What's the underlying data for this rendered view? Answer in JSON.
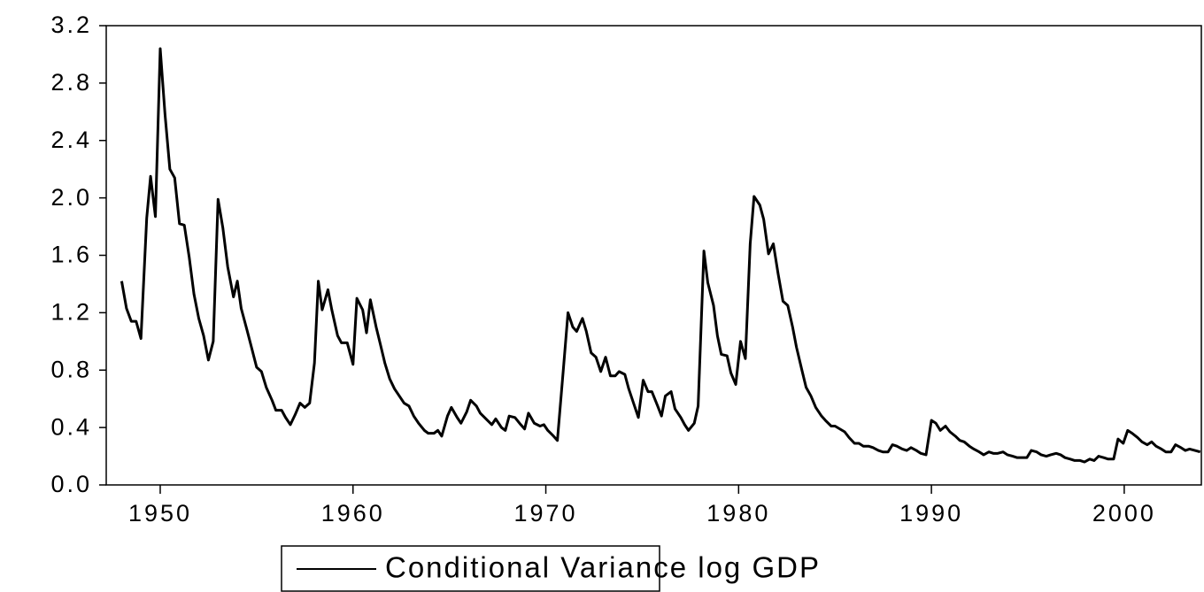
{
  "chart_data": {
    "type": "line",
    "xlim": [
      1947.2,
      2004.0
    ],
    "xticks": [
      1950,
      1960,
      1970,
      1980,
      1990,
      2000
    ],
    "ylim": [
      0,
      3.2
    ],
    "yticks": [
      {
        "value": 0,
        "label": "0.0"
      },
      0.4,
      0.8,
      1.2,
      1.6,
      {
        "value": 2,
        "label": "2.0"
      },
      2.4,
      2.8,
      3.2
    ],
    "grid": false,
    "legend": "bottom",
    "x": [
      1948.0,
      1948.25,
      1948.5,
      1948.75,
      1949.0,
      1949.3,
      1949.5,
      1949.75,
      1950.0,
      1950.25,
      1950.5,
      1950.75,
      1951.0,
      1951.25,
      1951.5,
      1951.75,
      1952.0,
      1952.25,
      1952.5,
      1952.75,
      1953.0,
      1953.25,
      1953.5,
      1953.8,
      1954.0,
      1954.2,
      1954.5,
      1954.75,
      1955.0,
      1955.25,
      1955.5,
      1955.8,
      1956.0,
      1956.3,
      1956.5,
      1956.75,
      1957.0,
      1957.25,
      1957.5,
      1957.75,
      1958.0,
      1958.2,
      1958.4,
      1958.7,
      1958.9,
      1959.2,
      1959.4,
      1959.7,
      1960.0,
      1960.2,
      1960.5,
      1960.7,
      1960.9,
      1961.2,
      1961.4,
      1961.65,
      1961.9,
      1962.15,
      1962.4,
      1962.65,
      1962.9,
      1963.15,
      1963.4,
      1963.7,
      1963.9,
      1964.2,
      1964.4,
      1964.6,
      1964.9,
      1965.1,
      1965.4,
      1965.6,
      1965.9,
      1966.1,
      1966.4,
      1966.6,
      1966.9,
      1967.2,
      1967.4,
      1967.7,
      1967.9,
      1968.1,
      1968.4,
      1968.7,
      1968.9,
      1969.1,
      1969.4,
      1969.7,
      1969.9,
      1970.1,
      1970.4,
      1970.6,
      1970.9,
      1971.15,
      1971.4,
      1971.6,
      1971.9,
      1972.1,
      1972.35,
      1972.6,
      1972.85,
      1973.1,
      1973.35,
      1973.6,
      1973.8,
      1974.1,
      1974.3,
      1974.55,
      1974.8,
      1975.05,
      1975.3,
      1975.5,
      1975.8,
      1976.0,
      1976.2,
      1976.5,
      1976.7,
      1977.0,
      1977.2,
      1977.4,
      1977.7,
      1977.9,
      1978.2,
      1978.4,
      1978.7,
      1978.9,
      1979.1,
      1979.4,
      1979.6,
      1979.85,
      1980.1,
      1980.35,
      1980.6,
      1980.8,
      1981.1,
      1981.3,
      1981.55,
      1981.8,
      1982.05,
      1982.3,
      1982.55,
      1982.8,
      1983.0,
      1983.3,
      1983.5,
      1983.75,
      1984.0,
      1984.3,
      1984.5,
      1984.8,
      1985.0,
      1985.5,
      1985.73,
      1986.01,
      1986.24,
      1986.47,
      1986.74,
      1986.97,
      1987.25,
      1987.48,
      1987.75,
      1987.98,
      1988.21,
      1988.49,
      1988.72,
      1988.94,
      1989.22,
      1989.45,
      1989.72,
      1990.0,
      1990.23,
      1990.46,
      1990.73,
      1990.96,
      1991.24,
      1991.47,
      1991.7,
      1991.97,
      1992.2,
      1992.48,
      1992.71,
      1992.98,
      1993.21,
      1993.44,
      1993.72,
      1993.94,
      1994.22,
      1994.45,
      1994.72,
      1994.95,
      1995.18,
      1995.46,
      1995.69,
      1995.96,
      1996.19,
      1996.47,
      1996.7,
      1996.93,
      1997.2,
      1997.43,
      1997.71,
      1997.94,
      1998.21,
      1998.44,
      1998.67,
      1998.94,
      1999.17,
      1999.45,
      1999.68,
      1999.95,
      2000.18,
      2000.41,
      2000.69,
      2000.92,
      2001.19,
      2001.42,
      2001.65,
      2001.93,
      2002.16,
      2002.43,
      2002.66,
      2002.94,
      2003.17,
      2003.39,
      2003.67,
      2003.94
    ],
    "series": [
      {
        "name": "Conditional Variance log GDP",
        "color": "#000000",
        "values": [
          1.42,
          1.23,
          1.14,
          1.14,
          1.02,
          1.86,
          2.15,
          1.87,
          3.04,
          2.58,
          2.2,
          2.14,
          1.82,
          1.81,
          1.59,
          1.33,
          1.16,
          1.04,
          0.87,
          1.0,
          1.99,
          1.79,
          1.52,
          1.31,
          1.42,
          1.23,
          1.08,
          0.95,
          0.82,
          0.79,
          0.68,
          0.59,
          0.52,
          0.52,
          0.47,
          0.42,
          0.49,
          0.57,
          0.54,
          0.57,
          0.85,
          1.42,
          1.22,
          1.36,
          1.22,
          1.04,
          0.99,
          0.99,
          0.84,
          1.3,
          1.22,
          1.06,
          1.29,
          1.1,
          0.99,
          0.85,
          0.74,
          0.67,
          0.62,
          0.57,
          0.55,
          0.48,
          0.43,
          0.38,
          0.36,
          0.36,
          0.38,
          0.34,
          0.48,
          0.54,
          0.47,
          0.43,
          0.51,
          0.59,
          0.55,
          0.5,
          0.46,
          0.42,
          0.46,
          0.4,
          0.38,
          0.48,
          0.47,
          0.42,
          0.39,
          0.5,
          0.43,
          0.41,
          0.42,
          0.38,
          0.34,
          0.31,
          0.79,
          1.2,
          1.1,
          1.07,
          1.16,
          1.07,
          0.92,
          0.89,
          0.79,
          0.89,
          0.76,
          0.76,
          0.79,
          0.77,
          0.67,
          0.57,
          0.47,
          0.73,
          0.65,
          0.65,
          0.55,
          0.48,
          0.62,
          0.65,
          0.53,
          0.47,
          0.42,
          0.38,
          0.43,
          0.55,
          1.63,
          1.41,
          1.25,
          1.04,
          0.91,
          0.9,
          0.78,
          0.7,
          1.0,
          0.88,
          1.68,
          2.01,
          1.95,
          1.85,
          1.61,
          1.68,
          1.47,
          1.28,
          1.25,
          1.1,
          0.96,
          0.79,
          0.68,
          0.62,
          0.54,
          0.48,
          0.45,
          0.41,
          0.41,
          0.37,
          0.33,
          0.29,
          0.29,
          0.27,
          0.27,
          0.26,
          0.24,
          0.23,
          0.23,
          0.28,
          0.27,
          0.25,
          0.24,
          0.26,
          0.24,
          0.22,
          0.21,
          0.45,
          0.43,
          0.38,
          0.41,
          0.37,
          0.34,
          0.31,
          0.3,
          0.27,
          0.25,
          0.23,
          0.21,
          0.23,
          0.22,
          0.22,
          0.23,
          0.21,
          0.2,
          0.19,
          0.19,
          0.19,
          0.24,
          0.23,
          0.21,
          0.2,
          0.21,
          0.22,
          0.21,
          0.19,
          0.18,
          0.17,
          0.17,
          0.16,
          0.18,
          0.17,
          0.2,
          0.19,
          0.18,
          0.18,
          0.32,
          0.29,
          0.38,
          0.36,
          0.33,
          0.3,
          0.28,
          0.3,
          0.27,
          0.25,
          0.23,
          0.23,
          0.28,
          0.26,
          0.24,
          0.25,
          0.24,
          0.23
        ]
      }
    ]
  }
}
